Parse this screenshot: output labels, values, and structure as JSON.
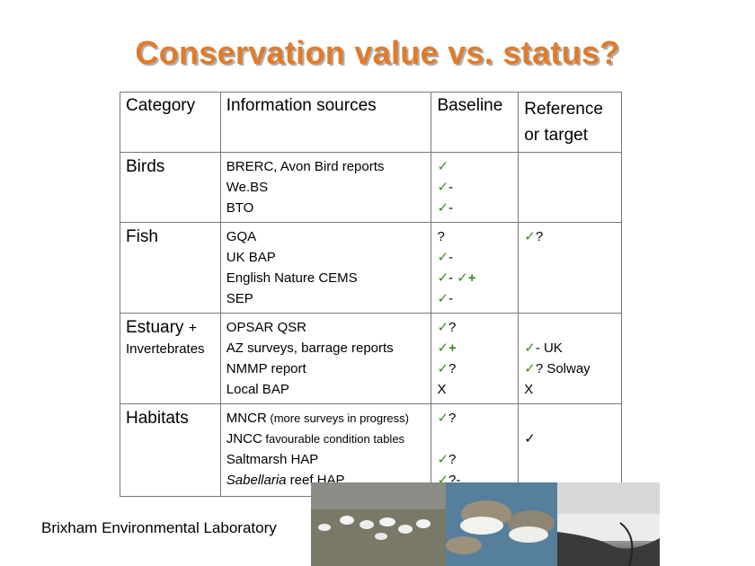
{
  "title": "Conservation value vs. status?",
  "table": {
    "headers": {
      "category": "Category",
      "sources": "Information sources",
      "baseline": "Baseline",
      "reference_line1": "Reference",
      "reference_line2": "or target"
    },
    "birds": {
      "category": "Birds",
      "sources": [
        "BRERC, Avon Bird reports",
        "We.BS",
        "BTO"
      ],
      "baseline": [
        {
          "check": "✓",
          "rest": ""
        },
        {
          "check": "✓",
          "rest": "-"
        },
        {
          "check": "✓",
          "rest": "-"
        }
      ]
    },
    "fish": {
      "category": "Fish",
      "sources": [
        "GQA",
        "UK BAP",
        "English Nature CEMS",
        "SEP"
      ],
      "baseline": [
        {
          "check": "",
          "rest": "?"
        },
        {
          "check": "✓",
          "rest": "-"
        },
        {
          "check": "✓",
          "rest": "- ",
          "check2": "✓",
          "rest2": "+"
        },
        {
          "check": "✓",
          "rest": "-"
        }
      ],
      "reference": {
        "check": "✓",
        "rest": "?"
      }
    },
    "estuary": {
      "category": "Estuary",
      "category_plus": "+",
      "category_line2": "Invertebrates",
      "sources": [
        "OPSAR QSR",
        "AZ surveys, barrage reports",
        "NMMP report",
        "Local BAP"
      ],
      "baseline": [
        {
          "check": "✓",
          "rest": "?"
        },
        {
          "check": "✓",
          "rest": "+"
        },
        {
          "check": "✓",
          "rest": "?"
        },
        {
          "check": "",
          "rest": "X"
        }
      ],
      "reference": [
        {
          "check": "",
          "rest": ""
        },
        {
          "check": "✓",
          "rest": "-  UK"
        },
        {
          "check": "✓",
          "rest": "? Solway"
        },
        {
          "check": "",
          "rest": "X"
        }
      ]
    },
    "habitats": {
      "category": "Habitats",
      "sources": [
        {
          "main": "MNCR",
          "note": " (more surveys in progress)"
        },
        {
          "main": "JNCC",
          "note": " favourable condition tables"
        },
        {
          "main": "Saltmarsh HAP",
          "note": ""
        },
        {
          "main_italic": "Sabellaria",
          "main": " reef HAP",
          "note": ""
        }
      ],
      "baseline": [
        {
          "check": "✓",
          "rest": "?"
        },
        {
          "check": "",
          "rest": ""
        },
        {
          "check": "✓",
          "rest": "?"
        },
        {
          "check": "✓",
          "rest": "?-"
        }
      ],
      "reference_check": "✓"
    }
  },
  "footer": "Brixham Environmental Laboratory",
  "photos": [
    "swans-photo",
    "wading-birds-photo",
    "estuary-landscape-photo"
  ]
}
